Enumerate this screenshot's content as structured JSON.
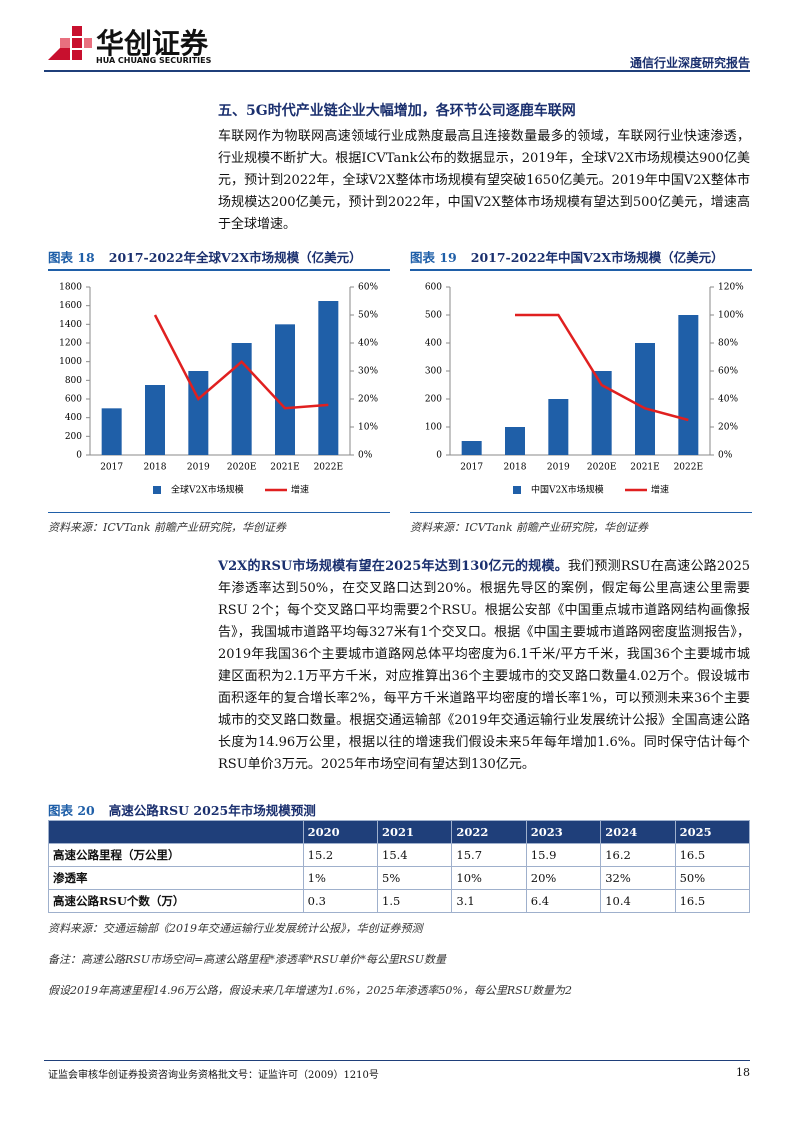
{
  "header": {
    "brand": "华创证券",
    "brand_en": "HUA CHUANG SECURITIES",
    "report_type": "通信行业深度研究报告"
  },
  "section_title": "五、5G时代产业链企业大幅增加，各环节公司逐鹿车联网",
  "paragraph1": "车联网作为物联网高速领域行业成熟度最高且连接数量最多的领域，车联网行业快速渗透，行业规模不断扩大。根据ICVTank公布的数据显示，2019年，全球V2X市场规模达900亿美元，预计到2022年，全球V2X整体市场规模有望突破1650亿美元。2019年中国V2X整体市场规模达200亿美元，预计到2022年，中国V2X整体市场规模有望达到500亿美元，增速高于全球增速。",
  "chart_data": [
    {
      "type": "bar",
      "figure_label": "图表 18",
      "title": "2017-2022年全球V2X市场规模（亿美元）",
      "source": "资料来源：ICVTank 前瞻产业研究院，华创证券",
      "categories": [
        "2017",
        "2018",
        "2019",
        "2020E",
        "2021E",
        "2022E"
      ],
      "series": [
        {
          "name": "全球V2X市场规模",
          "color": "#1f5fa8",
          "values": [
            500,
            750,
            900,
            1200,
            1400,
            1650
          ]
        },
        {
          "name": "增速",
          "color": "#e02020",
          "type": "line",
          "axis": "y2",
          "values": [
            null,
            50,
            20,
            33.3,
            16.7,
            17.9
          ]
        }
      ],
      "ylim": [
        0,
        1800
      ],
      "yticks": [
        0,
        200,
        400,
        600,
        800,
        1000,
        1200,
        1400,
        1600,
        1800
      ],
      "y2lim": [
        0,
        60
      ],
      "y2ticks": [
        {
          "value": 0,
          "label": "0%"
        },
        {
          "value": 10,
          "label": "10%"
        },
        {
          "value": 20,
          "label": "20%"
        },
        {
          "value": 30,
          "label": "30%"
        },
        {
          "value": 40,
          "label": "40%"
        },
        {
          "value": 50,
          "label": "50%"
        },
        {
          "value": 60,
          "label": "60%"
        }
      ],
      "legend": "bottom"
    },
    {
      "type": "bar",
      "figure_label": "图表 19",
      "title": "2017-2022年中国V2X市场规模（亿美元）",
      "source": "资料来源：ICVTank 前瞻产业研究院，华创证券",
      "categories": [
        "2017",
        "2018",
        "2019",
        "2020E",
        "2021E",
        "2022E"
      ],
      "series": [
        {
          "name": "中国V2X市场规模",
          "color": "#1f5fa8",
          "values": [
            50,
            100,
            200,
            300,
            400,
            500
          ]
        },
        {
          "name": "增速",
          "color": "#e02020",
          "type": "line",
          "axis": "y2",
          "values": [
            null,
            100,
            100,
            50,
            33.3,
            25
          ]
        }
      ],
      "ylim": [
        0,
        600
      ],
      "yticks": [
        0,
        100,
        200,
        300,
        400,
        500,
        600
      ],
      "y2lim": [
        0,
        120
      ],
      "y2ticks": [
        {
          "value": 0,
          "label": "0%"
        },
        {
          "value": 20,
          "label": "20%"
        },
        {
          "value": 40,
          "label": "40%"
        },
        {
          "value": 60,
          "label": "60%"
        },
        {
          "value": 80,
          "label": "80%"
        },
        {
          "value": 100,
          "label": "100%"
        },
        {
          "value": 120,
          "label": "120%"
        }
      ],
      "legend": "bottom"
    }
  ],
  "paragraph2": {
    "lead": "V2X的RSU市场规模有望在2025年达到130亿元的规模。",
    "body": "我们预测RSU在高速公路2025年渗透率达到50%，在交叉路口达到20%。根据先导区的案例，假定每公里高速公里需要RSU 2个；每个交叉路口平均需要2个RSU。根据公安部《中国重点城市道路网结构画像报告》，我国城市道路平均每327米有1个交叉口。根据《中国主要城市道路网密度监测报告》，2019年我国36个主要城市道路网总体平均密度为6.1千米/平方千米，我国36个主要城市城建区面积为2.1万平方千米，对应推算出36个主要城市的交叉路口数量4.02万个。假设城市面积逐年的复合增长率2%，每平方千米道路平均密度的增长率1%，可以预测未来36个主要城市的交叉路口数量。根据交通运输部《2019年交通运输行业发展统计公报》全国高速公路长度为14.96万公里，根据以往的增速我们假设未来5年每年增加1.6%。同时保守估计每个RSU单价3万元。2025年市场空间有望达到130亿元。"
  },
  "table": {
    "figure_label": "图表 20",
    "title": "高速公路RSU 2025年市场规模预测",
    "header": [
      "2020",
      "2021",
      "2022",
      "2023",
      "2024",
      "2025"
    ],
    "rows": [
      [
        "高速公路里程（万公里）",
        "15.2",
        "15.4",
        "15.7",
        "15.9",
        "16.2",
        "16.5"
      ],
      [
        "渗透率",
        "1%",
        "5%",
        "10%",
        "20%",
        "32%",
        "50%"
      ],
      [
        "高速公路RSU个数（万）",
        "0.3",
        "1.5",
        "3.1",
        "6.4",
        "10.4",
        "16.5"
      ]
    ],
    "source": "资料来源：交通运输部《2019年交通运输行业发展统计公报》，华创证券预测"
  },
  "notes": [
    "备注：高速公路RSU市场空间=高速公路里程*渗透率*RSU单价*每公里RSU数量",
    "假设2019年高速里程14.96万公路，假设未来几年增速为1.6%，2025年渗透率50%，每公里RSU数量为2"
  ],
  "footer": {
    "text": "证监会审核华创证券投资咨询业务资格批文号：证监许可（2009）1210号",
    "page": "18"
  }
}
